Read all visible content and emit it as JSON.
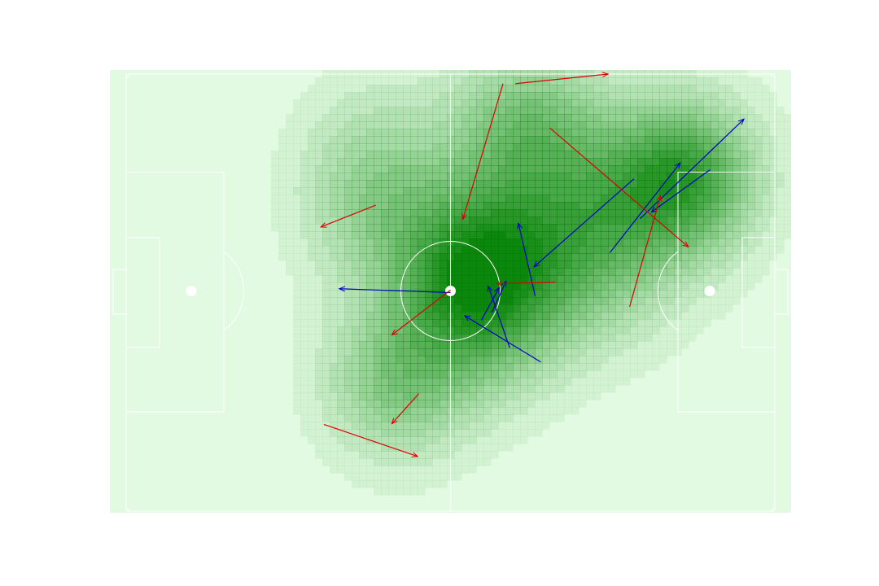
{
  "colors": {
    "pitch_base": "#e2fae2",
    "density_color": "#008000",
    "lines": "#ffffff",
    "pass_team_a": "#0000cc",
    "pass_team_b": "#dd0000"
  },
  "chart_data": {
    "type": "heatmap",
    "title": "",
    "xlabel": "",
    "ylabel": "",
    "pitch": {
      "length": 105,
      "width": 68
    },
    "xlim": [
      0,
      105
    ],
    "ylim": [
      0,
      68
    ],
    "grid": false,
    "density_centers": [
      {
        "x": 57,
        "y": 36,
        "weight": 1.0,
        "sx": 9,
        "sy": 10
      },
      {
        "x": 90,
        "y": 52,
        "weight": 0.75,
        "sx": 8,
        "sy": 8
      },
      {
        "x": 75,
        "y": 43,
        "weight": 0.55,
        "sx": 10,
        "sy": 10
      },
      {
        "x": 65,
        "y": 60,
        "weight": 0.45,
        "sx": 9,
        "sy": 8
      },
      {
        "x": 44,
        "y": 20,
        "weight": 0.4,
        "sx": 8,
        "sy": 8
      },
      {
        "x": 40,
        "y": 50,
        "weight": 0.35,
        "sx": 8,
        "sy": 10
      }
    ],
    "series": [
      {
        "color": "#0000cc",
        "passes": [
          {
            "x1": 52.5,
            "y1": 34.0,
            "x2": 34.5,
            "y2": 34.6
          },
          {
            "x1": 66.2,
            "y1": 33.5,
            "x2": 63.5,
            "y2": 44.8
          },
          {
            "x1": 67.1,
            "y1": 23.2,
            "x2": 54.8,
            "y2": 30.4
          },
          {
            "x1": 59.2,
            "y1": 30.9,
            "x2": 61.5,
            "y2": 35.8
          },
          {
            "x1": 62.1,
            "y1": 25.4,
            "x2": 58.6,
            "y2": 35.0
          },
          {
            "x1": 57.5,
            "y1": 29.7,
            "x2": 60.4,
            "y2": 34.8
          },
          {
            "x1": 82.2,
            "y1": 51.7,
            "x2": 66.0,
            "y2": 38.0
          },
          {
            "x1": 78.3,
            "y1": 40.2,
            "x2": 89.7,
            "y2": 54.2
          },
          {
            "x1": 83.2,
            "y1": 45.5,
            "x2": 100.0,
            "y2": 61.0
          },
          {
            "x1": 94.5,
            "y1": 53.1,
            "x2": 85.0,
            "y2": 46.5
          }
        ]
      },
      {
        "color": "#dd0000",
        "passes": [
          {
            "x1": 63.0,
            "y1": 66.5,
            "x2": 78.0,
            "y2": 68.0
          },
          {
            "x1": 61.0,
            "y1": 66.5,
            "x2": 54.5,
            "y2": 45.4
          },
          {
            "x1": 68.6,
            "y1": 59.6,
            "x2": 91.0,
            "y2": 41.1
          },
          {
            "x1": 40.4,
            "y1": 47.6,
            "x2": 31.5,
            "y2": 44.2
          },
          {
            "x1": 52.5,
            "y1": 34.4,
            "x2": 43.0,
            "y2": 27.4
          },
          {
            "x1": 69.5,
            "y1": 35.6,
            "x2": 60.0,
            "y2": 35.4
          },
          {
            "x1": 81.5,
            "y1": 31.8,
            "x2": 86.5,
            "y2": 49.1
          },
          {
            "x1": 47.4,
            "y1": 18.3,
            "x2": 43.0,
            "y2": 13.6
          },
          {
            "x1": 32.0,
            "y1": 13.5,
            "x2": 47.2,
            "y2": 8.5
          }
        ]
      }
    ]
  }
}
